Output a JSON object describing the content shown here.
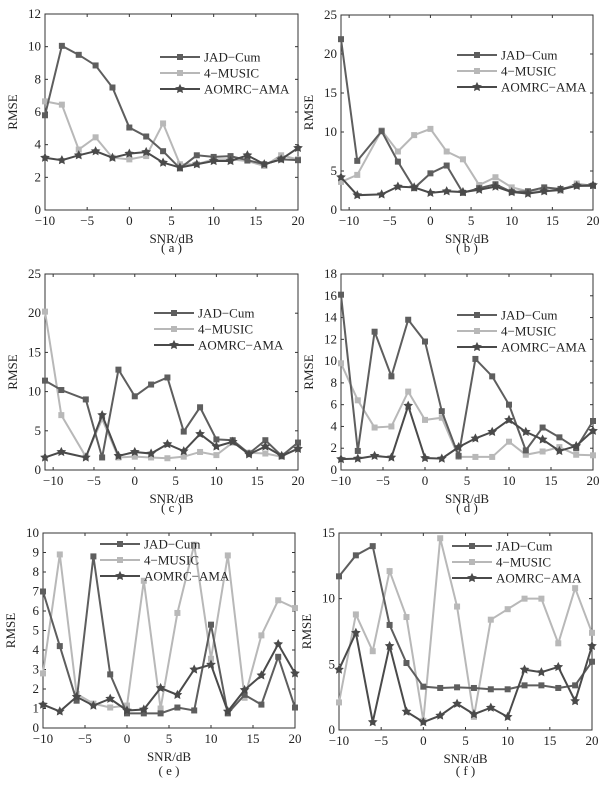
{
  "figure": {
    "colors": {
      "JAD-Cum": "#5e5e5e",
      "4-MUSIC": "#b8b8b8",
      "AOMRC-AMA": "#4a4a4a",
      "axis": "#333333"
    }
  },
  "chart_data": [
    {
      "panel": "a",
      "caption": "( a )",
      "type": "line",
      "xlabel": "SNR/dB",
      "ylabel": "RMSE",
      "xlim": [
        -10,
        20
      ],
      "ylim": [
        0,
        12
      ],
      "xticks": [
        -10,
        -5,
        0,
        5,
        10,
        15,
        20
      ],
      "yticks": [
        0,
        2,
        4,
        6,
        8,
        10,
        12
      ],
      "grid": false,
      "legend": "right-upper",
      "x": [
        -10,
        -8,
        -6,
        -4,
        -2,
        0,
        2,
        4,
        6,
        8,
        10,
        12,
        14,
        16,
        18,
        20
      ],
      "series": [
        {
          "name": "JAD-Cum",
          "marker": "square",
          "values": [
            5.8,
            10.05,
            9.5,
            8.85,
            7.5,
            5.05,
            4.5,
            3.6,
            2.55,
            3.35,
            3.25,
            3.3,
            3.05,
            2.8,
            3.1,
            3.05
          ]
        },
        {
          "name": "4-MUSIC",
          "marker": "square",
          "values": [
            6.65,
            6.45,
            3.7,
            4.45,
            3.2,
            3.1,
            3.3,
            5.3,
            2.8,
            2.8,
            3.1,
            3.1,
            3.0,
            2.7,
            3.35,
            3.1
          ]
        },
        {
          "name": "AOMRC-AMA",
          "marker": "star",
          "values": [
            3.2,
            3.05,
            3.35,
            3.6,
            3.2,
            3.45,
            3.55,
            2.9,
            2.6,
            2.8,
            3.0,
            3.0,
            3.35,
            2.8,
            3.1,
            3.8
          ]
        }
      ]
    },
    {
      "panel": "b",
      "caption": "( b )",
      "type": "line",
      "xlabel": "SNR/dB",
      "ylabel": "RMSE",
      "xlim": [
        -11,
        20
      ],
      "ylim": [
        0,
        25
      ],
      "xticks": [
        -10,
        -5,
        0,
        5,
        10,
        15,
        20
      ],
      "yticks": [
        0,
        5,
        10,
        15,
        20,
        25
      ],
      "grid": false,
      "legend": "right-upper",
      "x": [
        -11,
        -9,
        -6,
        -4,
        -2,
        0,
        2,
        4,
        6,
        8,
        10,
        12,
        14,
        16,
        18,
        20
      ],
      "series": [
        {
          "name": "JAD-Cum",
          "marker": "square",
          "values": [
            21.9,
            6.3,
            10.1,
            6.2,
            2.8,
            4.7,
            5.7,
            2.2,
            2.8,
            3.3,
            2.3,
            2.4,
            2.9,
            2.7,
            3.1,
            3.1
          ]
        },
        {
          "name": "4-MUSIC",
          "marker": "square",
          "values": [
            3.6,
            4.5,
            10.2,
            7.5,
            9.6,
            10.4,
            7.5,
            6.5,
            3.2,
            4.2,
            2.9,
            2.4,
            2.4,
            2.5,
            3.4,
            3.1
          ]
        },
        {
          "name": "AOMRC-AMA",
          "marker": "star",
          "values": [
            4.2,
            1.9,
            2.0,
            3.0,
            2.9,
            2.2,
            2.4,
            2.3,
            2.6,
            3.0,
            2.3,
            2.1,
            2.4,
            2.6,
            3.1,
            3.2
          ]
        }
      ]
    },
    {
      "panel": "c",
      "caption": "( c )",
      "type": "line",
      "xlabel": "SNR/dB",
      "ylabel": "RMSE",
      "xlim": [
        -11,
        20
      ],
      "ylim": [
        0,
        25
      ],
      "xticks": [
        -10,
        -5,
        0,
        5,
        10,
        15,
        20
      ],
      "yticks": [
        0,
        5,
        10,
        15,
        20,
        25
      ],
      "grid": false,
      "legend": "right-upper",
      "x": [
        -11,
        -9,
        -6,
        -4,
        -2,
        0,
        2,
        4,
        6,
        8,
        10,
        12,
        14,
        16,
        18,
        20
      ],
      "series": [
        {
          "name": "JAD-Cum",
          "marker": "square",
          "values": [
            11.4,
            10.2,
            9.0,
            1.6,
            12.8,
            9.4,
            10.9,
            11.8,
            4.9,
            8.0,
            3.9,
            3.8,
            2.1,
            3.8,
            1.8,
            3.5
          ]
        },
        {
          "name": "4-MUSIC",
          "marker": "square",
          "values": [
            20.2,
            7.0,
            1.7,
            6.5,
            1.6,
            1.7,
            1.6,
            1.5,
            1.7,
            2.3,
            1.9,
            3.5,
            2.2,
            2.1,
            1.7,
            2.8
          ]
        },
        {
          "name": "AOMRC-AMA",
          "marker": "star",
          "values": [
            1.6,
            2.3,
            1.6,
            7.0,
            1.8,
            2.3,
            2.1,
            3.3,
            2.4,
            4.6,
            3.0,
            3.6,
            2.0,
            3.0,
            1.8,
            2.7
          ]
        }
      ]
    },
    {
      "panel": "d",
      "caption": "( d )",
      "type": "line",
      "xlabel": "SNR/dB",
      "ylabel": "RMSE",
      "xlim": [
        -10,
        20
      ],
      "ylim": [
        0,
        18
      ],
      "xticks": [
        -10,
        -5,
        0,
        5,
        10,
        15,
        20
      ],
      "yticks": [
        0,
        2,
        4,
        6,
        8,
        10,
        12,
        14,
        16,
        18
      ],
      "grid": false,
      "legend": "right-upper",
      "x": [
        -10,
        -8,
        -6,
        -4,
        -2,
        0,
        2,
        4,
        6,
        8,
        10,
        12,
        14,
        16,
        18,
        20
      ],
      "series": [
        {
          "name": "JAD-Cum",
          "marker": "square",
          "values": [
            16.1,
            1.75,
            12.7,
            8.6,
            13.8,
            11.8,
            5.4,
            1.3,
            10.2,
            8.6,
            6.0,
            1.8,
            3.9,
            3.0,
            2.0,
            4.5
          ]
        },
        {
          "name": "4-MUSIC",
          "marker": "square",
          "values": [
            9.8,
            6.4,
            3.9,
            4.0,
            7.2,
            4.6,
            4.8,
            1.2,
            1.2,
            1.2,
            2.6,
            1.4,
            1.7,
            2.1,
            1.4,
            1.35
          ]
        },
        {
          "name": "AOMRC-AMA",
          "marker": "star",
          "values": [
            1.0,
            1.05,
            1.3,
            1.15,
            5.9,
            1.1,
            1.05,
            2.1,
            2.9,
            3.5,
            4.6,
            3.5,
            2.8,
            1.75,
            2.2,
            3.6
          ]
        }
      ]
    },
    {
      "panel": "e",
      "caption": "( e )",
      "type": "line",
      "xlabel": "SNR/dB",
      "ylabel": "RMSE",
      "xlim": [
        -10,
        20
      ],
      "ylim": [
        0,
        10
      ],
      "xticks": [
        -10,
        -5,
        0,
        5,
        10,
        15,
        20
      ],
      "yticks": [
        0,
        1,
        2,
        3,
        4,
        5,
        6,
        7,
        8,
        9,
        10
      ],
      "grid": false,
      "legend": "top-center",
      "x": [
        -10,
        -8,
        -6,
        -4,
        -2,
        0,
        2,
        4,
        6,
        8,
        10,
        12,
        14,
        16,
        18,
        20
      ],
      "series": [
        {
          "name": "JAD-Cum",
          "marker": "square",
          "values": [
            7.0,
            4.2,
            1.4,
            8.8,
            2.75,
            0.75,
            0.75,
            0.75,
            1.05,
            0.9,
            5.3,
            0.75,
            1.7,
            1.2,
            3.65,
            1.05
          ]
        },
        {
          "name": "4-MUSIC",
          "marker": "square",
          "values": [
            2.8,
            8.9,
            1.75,
            1.25,
            1.05,
            1.15,
            7.55,
            1.0,
            5.9,
            9.4,
            3.55,
            8.85,
            1.55,
            4.75,
            6.55,
            6.15
          ]
        },
        {
          "name": "AOMRC-AMA",
          "marker": "star",
          "values": [
            1.2,
            0.85,
            1.6,
            1.15,
            1.5,
            0.9,
            0.95,
            2.05,
            1.7,
            3.0,
            3.25,
            0.85,
            1.95,
            2.7,
            4.3,
            2.8
          ]
        }
      ]
    },
    {
      "panel": "f",
      "caption": "( f )",
      "type": "line",
      "xlabel": "SNR/dB",
      "ylabel": "RMSE",
      "xlim": [
        -10,
        20
      ],
      "ylim": [
        0,
        15
      ],
      "xticks": [
        -10,
        -5,
        0,
        5,
        10,
        15,
        20
      ],
      "yticks": [
        0,
        5,
        10,
        15
      ],
      "grid": false,
      "legend": "right-upper",
      "x": [
        -10,
        -8,
        -6,
        -4,
        -2,
        0,
        2,
        4,
        6,
        8,
        10,
        12,
        14,
        16,
        18,
        20
      ],
      "series": [
        {
          "name": "JAD-Cum",
          "marker": "square",
          "values": [
            11.7,
            13.3,
            14.0,
            8.0,
            5.1,
            3.3,
            3.2,
            3.25,
            3.2,
            3.1,
            3.1,
            3.4,
            3.4,
            3.2,
            3.4,
            5.2
          ]
        },
        {
          "name": "4-MUSIC",
          "marker": "square",
          "values": [
            2.1,
            8.8,
            6.0,
            12.1,
            8.6,
            0.7,
            14.6,
            9.4,
            1.0,
            8.4,
            9.2,
            10.0,
            10.0,
            6.6,
            10.8,
            7.4
          ]
        },
        {
          "name": "AOMRC-AMA",
          "marker": "star",
          "values": [
            4.6,
            7.4,
            0.6,
            6.4,
            1.4,
            0.6,
            1.1,
            2.0,
            1.2,
            1.7,
            1.0,
            4.6,
            4.4,
            4.8,
            2.2,
            6.4
          ]
        }
      ]
    }
  ]
}
